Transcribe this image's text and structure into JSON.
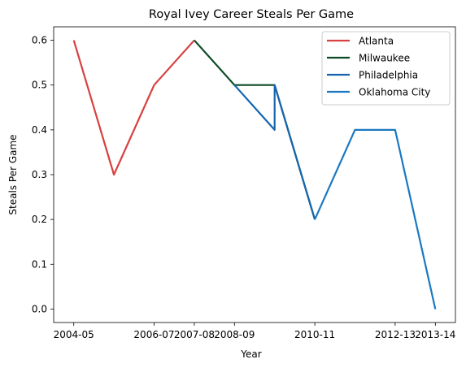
{
  "chart_data": {
    "type": "line",
    "title": "Royal Ivey Career Steals Per Game",
    "xlabel": "Year",
    "ylabel": "Steals Per Game",
    "x": [
      "2004-05",
      "2005-06",
      "2006-07",
      "2007-08",
      "2008-09",
      "2009-10",
      "2009-10",
      "2010-11",
      "2011-12",
      "2012-13",
      "2013-14"
    ],
    "xticks": [
      "2004-05",
      "2006-07",
      "2007-08",
      "2008-09",
      "2010-11",
      "2012-13",
      "2013-14"
    ],
    "ylim": [
      -0.03,
      0.63
    ],
    "yticks": [
      "0.0",
      "0.1",
      "0.2",
      "0.3",
      "0.4",
      "0.5",
      "0.6"
    ],
    "legend_position": "top-right",
    "grid": false,
    "series": [
      {
        "name": "Atlanta",
        "color": "#d94040",
        "points": [
          [
            "2004-05",
            0.6
          ],
          [
            "2005-06",
            0.3
          ],
          [
            "2006-07",
            0.5
          ],
          [
            "2007-08",
            0.6
          ]
        ]
      },
      {
        "name": "Milwaukee",
        "color": "#0b4a22",
        "points": [
          [
            "2007-08",
            0.6
          ],
          [
            "2008-09",
            0.5
          ],
          [
            "2009-10",
            0.5
          ],
          [
            "2010-11",
            0.2
          ]
        ]
      },
      {
        "name": "Philadelphia",
        "color": "#1565b0",
        "points": [
          [
            "2008-09",
            0.5
          ],
          [
            "2009-10",
            0.4
          ],
          [
            "2009-10",
            0.5
          ],
          [
            "2010-11",
            0.2
          ]
        ]
      },
      {
        "name": "Oklahoma City",
        "color": "#1a78c2",
        "points": [
          [
            "2010-11",
            0.2
          ],
          [
            "2011-12",
            0.4
          ],
          [
            "2012-13",
            0.4
          ],
          [
            "2013-14",
            0.0
          ]
        ]
      }
    ]
  }
}
